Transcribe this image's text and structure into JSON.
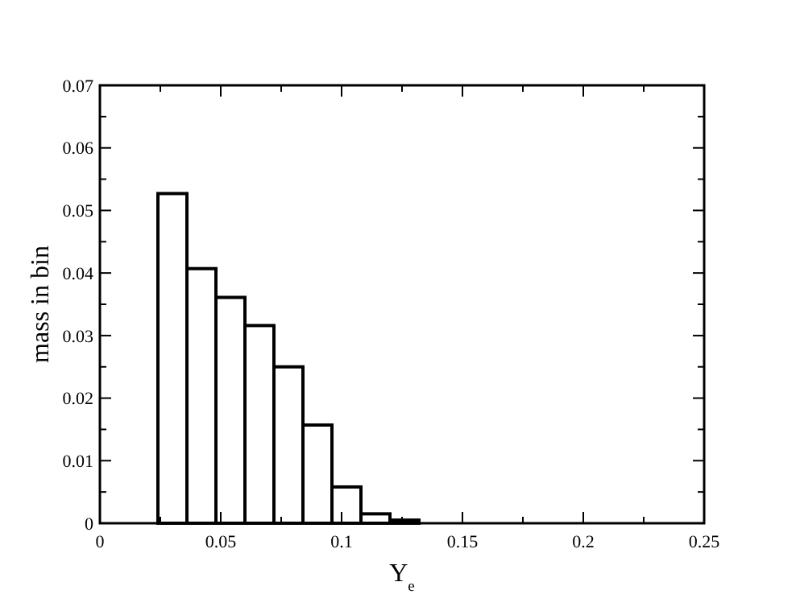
{
  "chart_data": {
    "type": "histogram",
    "xlabel": "Y$_{e}$",
    "ylabel": "mass in bin",
    "bins": [
      0.012,
      0.024,
      0.036,
      0.048,
      0.06,
      0.072,
      0.084,
      0.096,
      0.108,
      0.12,
      0.132,
      0.144,
      0.156,
      0.168,
      0.18,
      0.192,
      0.204,
      0.216,
      0.228,
      0.24
    ],
    "values": [
      0,
      0.0527,
      0.0407,
      0.0361,
      0.0316,
      0.025,
      0.0157,
      0.0058,
      0.0015,
      0.0005,
      0,
      0,
      0,
      0,
      0,
      0,
      0,
      0,
      0
    ],
    "color": "#ffffff",
    "xlim": [
      0,
      0.25
    ],
    "ylim": [
      0,
      0.07
    ],
    "xticks": [
      0,
      {
        "value": 0.025,
        "label": null
      },
      0.05,
      {
        "value": 0.075,
        "label": null
      },
      0.1,
      {
        "value": 0.125,
        "label": null
      },
      0.15,
      {
        "value": 0.175,
        "label": null
      },
      0.2,
      {
        "value": 0.225,
        "label": null
      },
      0.25
    ],
    "yticks": [
      0,
      {
        "value": 0.005,
        "label": null
      },
      0.01,
      {
        "value": 0.015,
        "label": null
      },
      0.02,
      {
        "value": 0.025,
        "label": null
      },
      0.03,
      {
        "value": 0.035,
        "label": null
      },
      0.04,
      {
        "value": 0.045,
        "label": null
      },
      0.05,
      {
        "value": 0.055,
        "label": null
      },
      0.06,
      {
        "value": 0.065,
        "label": null
      },
      0.07
    ],
    "grid": false
  }
}
